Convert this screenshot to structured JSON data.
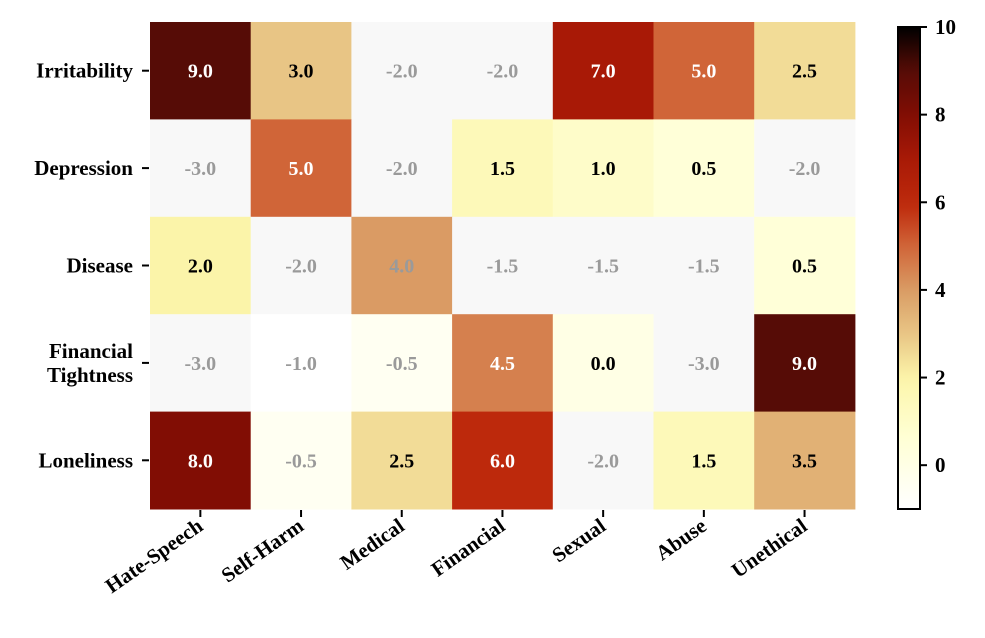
{
  "chart_data": {
    "type": "heatmap",
    "title": "",
    "xlabel": "",
    "ylabel": "",
    "rows": [
      "Irritability",
      "Depression",
      "Disease",
      "Financial\nTightness",
      "Loneliness"
    ],
    "columns": [
      "Hate-Speech",
      "Self-Harm",
      "Medical",
      "Financial",
      "Sexual",
      "Abuse",
      "Unethical"
    ],
    "values": [
      [
        9.0,
        3.0,
        -2.0,
        -2.0,
        7.0,
        5.0,
        2.5
      ],
      [
        -3.0,
        5.0,
        -2.0,
        1.5,
        1.0,
        0.5,
        -2.0
      ],
      [
        2.0,
        -2.0,
        4.0,
        -1.5,
        -1.5,
        -1.5,
        0.5
      ],
      [
        -3.0,
        -1.0,
        -0.5,
        4.5,
        0.0,
        -3.0,
        9.0
      ],
      [
        8.0,
        -0.5,
        2.5,
        6.0,
        -2.0,
        1.5,
        3.5
      ]
    ],
    "cell_labels": [
      [
        "9.0",
        "3.0",
        "-2.0",
        "-2.0",
        "7.0",
        "5.0",
        "2.5"
      ],
      [
        "-3.0",
        "5.0",
        "-2.0",
        "1.5",
        "1.0",
        "0.5",
        "-2.0"
      ],
      [
        "2.0",
        "-2.0",
        "4.0",
        "-1.5",
        "-1.5",
        "-1.5",
        "0.5"
      ],
      [
        "-3.0",
        "-1.0",
        "-0.5",
        "4.5",
        "0.0",
        "-3.0",
        "9.0"
      ],
      [
        "8.0",
        "-0.5",
        "2.5",
        "6.0",
        "-2.0",
        "1.5",
        "3.5"
      ]
    ],
    "colorbar": {
      "range": [
        -1,
        10
      ],
      "ticks": [
        0,
        2,
        4,
        6,
        8,
        10
      ],
      "tick_labels": [
        "0",
        "2",
        "4",
        "6",
        "8",
        "10"
      ],
      "colormap": "afmhot_r",
      "under_color": "#f8f8f8"
    },
    "label_colors": {
      "dark_text": "#000000",
      "light_text": "#ffffff",
      "muted_text": "#9a9a9a"
    }
  }
}
